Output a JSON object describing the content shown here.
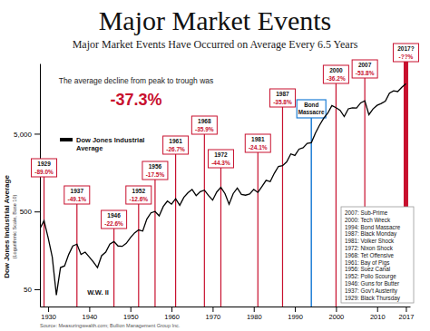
{
  "chart_data": {
    "type": "line",
    "title": "Major Market Events",
    "subtitle": "Major Market Events Have Occurred on Average Every 6.5 Years",
    "y_label": "Dow Jones Industrial Average",
    "y_label_note": "(Logarithmic Scale, Base 10)",
    "x": [
      1928,
      1929,
      1930,
      1931,
      1932,
      1933,
      1934,
      1935,
      1936,
      1937,
      1938,
      1939,
      1940,
      1941,
      1942,
      1943,
      1944,
      1945,
      1946,
      1947,
      1948,
      1949,
      1950,
      1951,
      1952,
      1953,
      1954,
      1955,
      1956,
      1957,
      1958,
      1959,
      1960,
      1961,
      1962,
      1963,
      1964,
      1965,
      1966,
      1967,
      1968,
      1969,
      1970,
      1971,
      1972,
      1973,
      1974,
      1975,
      1976,
      1977,
      1978,
      1979,
      1980,
      1981,
      1982,
      1983,
      1984,
      1985,
      1986,
      1987,
      1988,
      1989,
      1990,
      1991,
      1992,
      1993,
      1994,
      1995,
      1996,
      1997,
      1998,
      1999,
      2000,
      2001,
      2002,
      2003,
      2004,
      2005,
      2006,
      2007,
      2008,
      2009,
      2010,
      2011,
      2012,
      2013,
      2014,
      2015,
      2016,
      2017
    ],
    "series": [
      {
        "name": "Dow Jones Industrial Average",
        "color": "#000000",
        "values": [
          300,
          381,
          230,
          130,
          42,
          95,
          100,
          140,
          180,
          190,
          140,
          150,
          130,
          112,
          95,
          135,
          150,
          190,
          205,
          180,
          178,
          195,
          230,
          265,
          290,
          280,
          400,
          480,
          500,
          440,
          580,
          680,
          620,
          730,
          600,
          760,
          870,
          960,
          800,
          900,
          940,
          800,
          700,
          890,
          1020,
          850,
          620,
          850,
          1000,
          830,
          810,
          840,
          960,
          880,
          1050,
          1260,
          1210,
          1550,
          1900,
          1940,
          2170,
          2750,
          2630,
          3170,
          3300,
          3750,
          3830,
          5100,
          6450,
          7900,
          9200,
          11500,
          10800,
          10000,
          8300,
          10450,
          10780,
          10720,
          12460,
          13260,
          8780,
          10430,
          11580,
          12220,
          13100,
          16580,
          17820,
          17425,
          19760,
          22000
        ]
      }
    ],
    "xlim": [
      1928,
      2018
    ],
    "xticks": [
      1930,
      1940,
      1950,
      1960,
      1970,
      1980,
      1990,
      2000,
      2010,
      2017
    ],
    "ylim": [
      30,
      40000
    ],
    "yticks": [
      50,
      500,
      {
        "value": 5000,
        "label": "5,000"
      }
    ],
    "log": "y",
    "grid": false,
    "legend": "upper left",
    "average_decline": {
      "text": "The average decline from peak to trough was",
      "label": "-37.3%"
    },
    "events": {
      "x": [
        1929,
        1937,
        1946,
        1952,
        1956,
        1961,
        1968,
        1972,
        1981,
        1987,
        2000,
        2007,
        2017
      ],
      "labels": [
        "1929",
        "1937",
        "1946",
        "1952",
        "1956",
        "1961",
        "1968",
        "1972",
        "1981",
        "1987",
        "2000",
        "2007",
        "2017?"
      ],
      "declines": [
        "-89.0%",
        "-49.1%",
        "-22.6%",
        "-12.6%",
        "-17.5%",
        "-26.7%",
        "-35.9%",
        "-44.3%",
        "-24.1%",
        "-35.8%",
        "-36.2%",
        "-53.8%",
        "-??%"
      ],
      "color": "#c8102e"
    },
    "highlight": {
      "x": 1994,
      "label": "Bond Massacre",
      "color": "#1f7fd6"
    },
    "event_list": [
      "2007: Sub-Prime",
      "2000: Tech Wreck",
      "1994: Bond Massacre",
      "1987: Black Monday",
      "1981: Volker Shock",
      "1972: Nixon Shock",
      "1968: Tet Offensive",
      "1961: Bay of Pigs",
      "1956: Suez Canal",
      "1952: Polio Scourge",
      "1946: Guns for Butter",
      "1937: Gov't Austerity",
      "1929: Black Thursday"
    ],
    "annotations": [
      "W.W. II"
    ],
    "source": "Source: Measuringwealth.com; Bullion Management Group Inc."
  }
}
